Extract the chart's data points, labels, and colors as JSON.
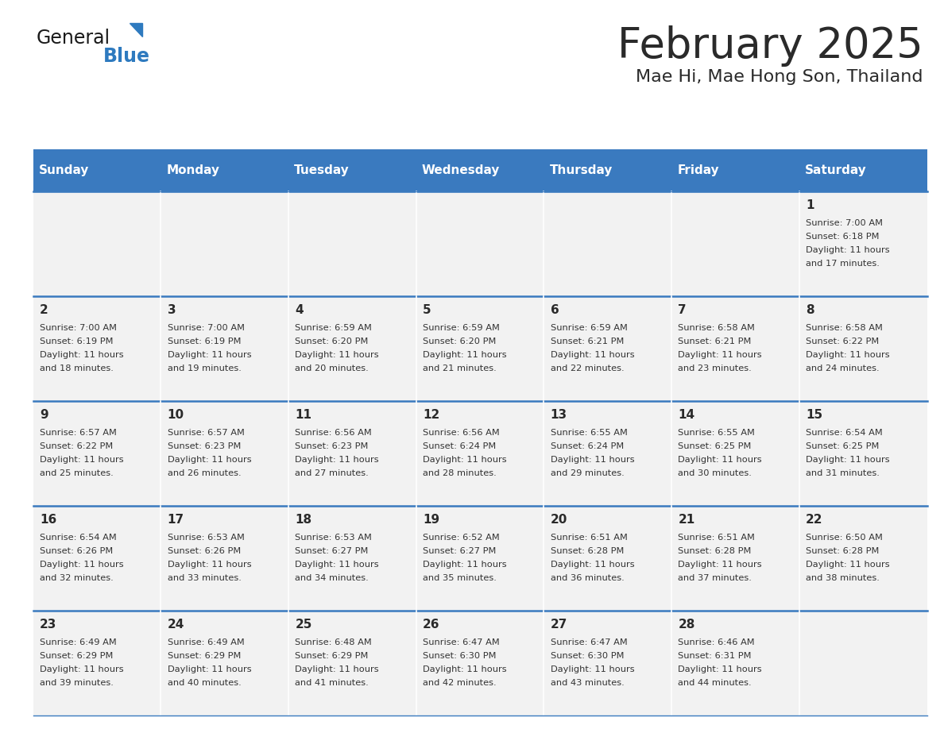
{
  "title": "February 2025",
  "subtitle": "Mae Hi, Mae Hong Son, Thailand",
  "days_of_week": [
    "Sunday",
    "Monday",
    "Tuesday",
    "Wednesday",
    "Thursday",
    "Friday",
    "Saturday"
  ],
  "header_bg": "#3a7abf",
  "header_text": "#ffffff",
  "cell_bg": "#f2f2f2",
  "border_color": "#3a7abf",
  "title_color": "#2a2a2a",
  "subtitle_color": "#2a2a2a",
  "day_number_color": "#2a2a2a",
  "cell_text_color": "#333333",
  "logo_general_color": "#1a1a1a",
  "logo_blue_color": "#2e7abf",
  "logo_triangle_color": "#2e7abf",
  "calendar_data": [
    [
      null,
      null,
      null,
      null,
      null,
      null,
      {
        "day": 1,
        "sunrise": "7:00 AM",
        "sunset": "6:18 PM",
        "daylight": "11 hours and 17 minutes."
      }
    ],
    [
      {
        "day": 2,
        "sunrise": "7:00 AM",
        "sunset": "6:19 PM",
        "daylight": "11 hours and 18 minutes."
      },
      {
        "day": 3,
        "sunrise": "7:00 AM",
        "sunset": "6:19 PM",
        "daylight": "11 hours and 19 minutes."
      },
      {
        "day": 4,
        "sunrise": "6:59 AM",
        "sunset": "6:20 PM",
        "daylight": "11 hours and 20 minutes."
      },
      {
        "day": 5,
        "sunrise": "6:59 AM",
        "sunset": "6:20 PM",
        "daylight": "11 hours and 21 minutes."
      },
      {
        "day": 6,
        "sunrise": "6:59 AM",
        "sunset": "6:21 PM",
        "daylight": "11 hours and 22 minutes."
      },
      {
        "day": 7,
        "sunrise": "6:58 AM",
        "sunset": "6:21 PM",
        "daylight": "11 hours and 23 minutes."
      },
      {
        "day": 8,
        "sunrise": "6:58 AM",
        "sunset": "6:22 PM",
        "daylight": "11 hours and 24 minutes."
      }
    ],
    [
      {
        "day": 9,
        "sunrise": "6:57 AM",
        "sunset": "6:22 PM",
        "daylight": "11 hours and 25 minutes."
      },
      {
        "day": 10,
        "sunrise": "6:57 AM",
        "sunset": "6:23 PM",
        "daylight": "11 hours and 26 minutes."
      },
      {
        "day": 11,
        "sunrise": "6:56 AM",
        "sunset": "6:23 PM",
        "daylight": "11 hours and 27 minutes."
      },
      {
        "day": 12,
        "sunrise": "6:56 AM",
        "sunset": "6:24 PM",
        "daylight": "11 hours and 28 minutes."
      },
      {
        "day": 13,
        "sunrise": "6:55 AM",
        "sunset": "6:24 PM",
        "daylight": "11 hours and 29 minutes."
      },
      {
        "day": 14,
        "sunrise": "6:55 AM",
        "sunset": "6:25 PM",
        "daylight": "11 hours and 30 minutes."
      },
      {
        "day": 15,
        "sunrise": "6:54 AM",
        "sunset": "6:25 PM",
        "daylight": "11 hours and 31 minutes."
      }
    ],
    [
      {
        "day": 16,
        "sunrise": "6:54 AM",
        "sunset": "6:26 PM",
        "daylight": "11 hours and 32 minutes."
      },
      {
        "day": 17,
        "sunrise": "6:53 AM",
        "sunset": "6:26 PM",
        "daylight": "11 hours and 33 minutes."
      },
      {
        "day": 18,
        "sunrise": "6:53 AM",
        "sunset": "6:27 PM",
        "daylight": "11 hours and 34 minutes."
      },
      {
        "day": 19,
        "sunrise": "6:52 AM",
        "sunset": "6:27 PM",
        "daylight": "11 hours and 35 minutes."
      },
      {
        "day": 20,
        "sunrise": "6:51 AM",
        "sunset": "6:28 PM",
        "daylight": "11 hours and 36 minutes."
      },
      {
        "day": 21,
        "sunrise": "6:51 AM",
        "sunset": "6:28 PM",
        "daylight": "11 hours and 37 minutes."
      },
      {
        "day": 22,
        "sunrise": "6:50 AM",
        "sunset": "6:28 PM",
        "daylight": "11 hours and 38 minutes."
      }
    ],
    [
      {
        "day": 23,
        "sunrise": "6:49 AM",
        "sunset": "6:29 PM",
        "daylight": "11 hours and 39 minutes."
      },
      {
        "day": 24,
        "sunrise": "6:49 AM",
        "sunset": "6:29 PM",
        "daylight": "11 hours and 40 minutes."
      },
      {
        "day": 25,
        "sunrise": "6:48 AM",
        "sunset": "6:29 PM",
        "daylight": "11 hours and 41 minutes."
      },
      {
        "day": 26,
        "sunrise": "6:47 AM",
        "sunset": "6:30 PM",
        "daylight": "11 hours and 42 minutes."
      },
      {
        "day": 27,
        "sunrise": "6:47 AM",
        "sunset": "6:30 PM",
        "daylight": "11 hours and 43 minutes."
      },
      {
        "day": 28,
        "sunrise": "6:46 AM",
        "sunset": "6:31 PM",
        "daylight": "11 hours and 44 minutes."
      },
      null
    ]
  ]
}
